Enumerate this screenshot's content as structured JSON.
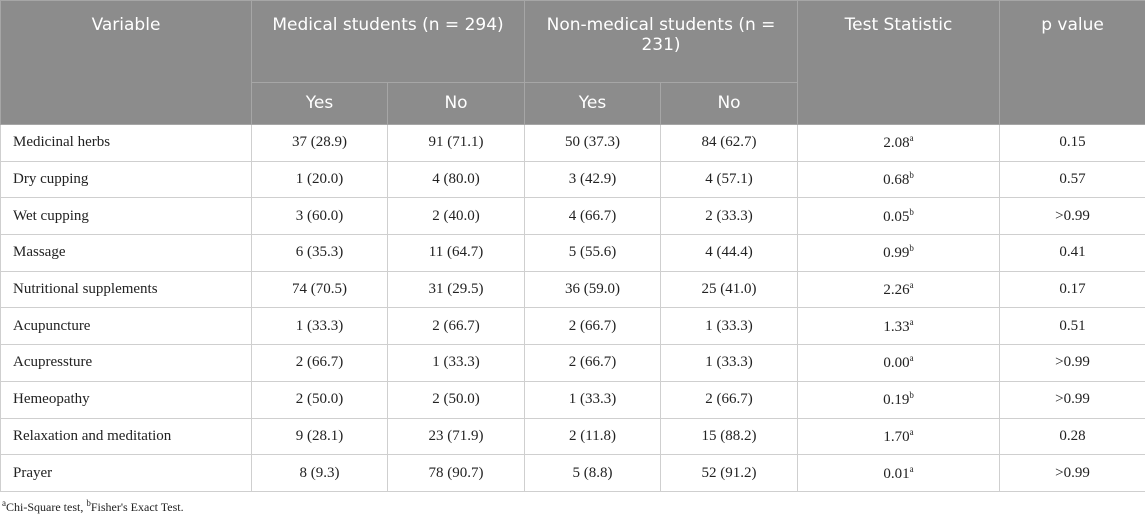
{
  "headers": {
    "variable": "Variable",
    "medical": "Medical students (n = 294)",
    "nonmedical": "Non-medical students (n = 231)",
    "test": "Test Statistic",
    "p": "p value",
    "yes": "Yes",
    "no": "No"
  },
  "rows": [
    {
      "variable": "Medicinal herbs",
      "med_yes": "37 (28.9)",
      "med_no": "91 (71.1)",
      "non_yes": "50 (37.3)",
      "non_no": "84 (62.7)",
      "stat": "2.08",
      "sup": "a",
      "p": "0.15"
    },
    {
      "variable": "Dry cupping",
      "med_yes": "1 (20.0)",
      "med_no": "4 (80.0)",
      "non_yes": "3 (42.9)",
      "non_no": "4 (57.1)",
      "stat": "0.68",
      "sup": "b",
      "p": "0.57"
    },
    {
      "variable": "Wet cupping",
      "med_yes": "3 (60.0)",
      "med_no": "2 (40.0)",
      "non_yes": "4 (66.7)",
      "non_no": "2 (33.3)",
      "stat": "0.05",
      "sup": "b",
      "p": ">0.99"
    },
    {
      "variable": "Massage",
      "med_yes": "6 (35.3)",
      "med_no": "11 (64.7)",
      "non_yes": "5 (55.6)",
      "non_no": "4 (44.4)",
      "stat": "0.99",
      "sup": "b",
      "p": "0.41"
    },
    {
      "variable": "Nutritional supplements",
      "med_yes": "74 (70.5)",
      "med_no": "31 (29.5)",
      "non_yes": "36 (59.0)",
      "non_no": "25 (41.0)",
      "stat": "2.26",
      "sup": "a",
      "p": "0.17"
    },
    {
      "variable": "Acupuncture",
      "med_yes": "1 (33.3)",
      "med_no": "2 (66.7)",
      "non_yes": "2 (66.7)",
      "non_no": "1 (33.3)",
      "stat": "1.33",
      "sup": "a",
      "p": "0.51"
    },
    {
      "variable": "Acupressture",
      "med_yes": "2 (66.7)",
      "med_no": "1 (33.3)",
      "non_yes": "2 (66.7)",
      "non_no": "1 (33.3)",
      "stat": "0.00",
      "sup": "a",
      "p": ">0.99"
    },
    {
      "variable": "Hemeopathy",
      "med_yes": "2 (50.0)",
      "med_no": "2 (50.0)",
      "non_yes": "1 (33.3)",
      "non_no": "2 (66.7)",
      "stat": "0.19",
      "sup": "b",
      "p": ">0.99"
    },
    {
      "variable": "Relaxation and meditation",
      "med_yes": "9 (28.1)",
      "med_no": "23 (71.9)",
      "non_yes": "2 (11.8)",
      "non_no": "15 (88.2)",
      "stat": "1.70",
      "sup": "a",
      "p": "0.28"
    },
    {
      "variable": "Prayer",
      "med_yes": "8 (9.3)",
      "med_no": "78 (90.7)",
      "non_yes": "5 (8.8)",
      "non_no": "52 (91.2)",
      "stat": "0.01",
      "sup": "a",
      "p": ">0.99"
    }
  ],
  "footnote": {
    "a_sup": "a",
    "a_text": "Chi-Square test, ",
    "b_sup": "b",
    "b_text": "Fisher's Exact Test."
  }
}
